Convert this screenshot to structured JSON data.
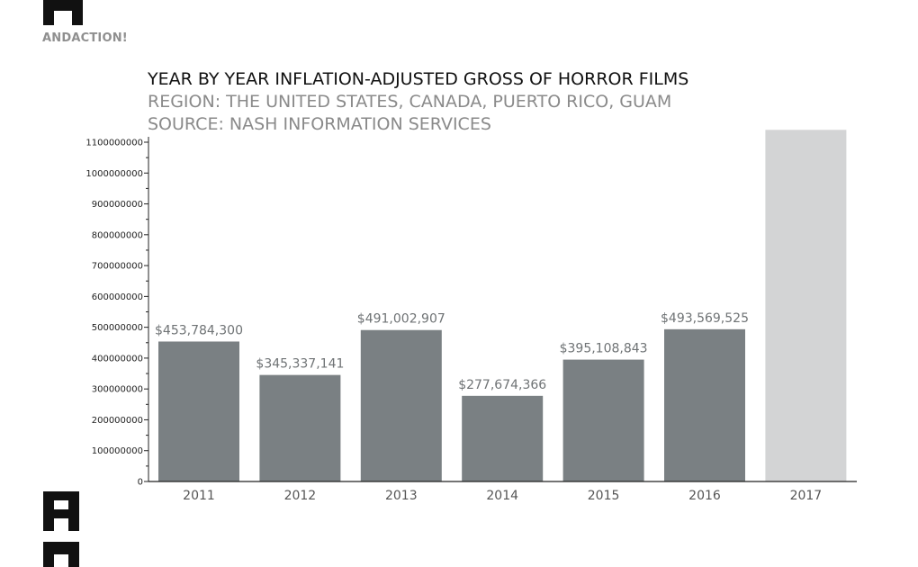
{
  "brand": {
    "name": "ANDACTION!",
    "logo_icon": "andaction-logo-icon"
  },
  "colors": {
    "bar": "#7a8083",
    "bar_highlight": "#d3d4d5",
    "axis": "#222222",
    "brand_text": "#8f8f8f"
  },
  "chart_data": {
    "type": "bar",
    "title": "YEAR BY YEAR INFLATION-ADJUSTED GROSS OF HORROR FILMS",
    "subtitles": [
      "REGION: THE UNITED STATES, CANADA, PUERTO RICO, GUAM",
      "SOURCE: NASH INFORMATION SERVICES"
    ],
    "categories": [
      "2011",
      "2012",
      "2013",
      "2014",
      "2015",
      "2016",
      "2017"
    ],
    "values": [
      453784300,
      345337141,
      491002907,
      277674366,
      395108843,
      493569525,
      1140000000
    ],
    "data_labels": [
      "$453,784,300",
      "$345,337,141",
      "$491,002,907",
      "$277,674,366",
      "$395,108,843",
      "$493,569,525",
      ""
    ],
    "highlighted_category": "2017",
    "ylim": [
      0,
      1100000000
    ],
    "yticks": [
      0,
      100000000,
      200000000,
      300000000,
      400000000,
      500000000,
      600000000,
      700000000,
      800000000,
      900000000,
      1000000000,
      1100000000
    ],
    "xlabel": "",
    "ylabel": "",
    "grid": false,
    "legend": "none"
  }
}
